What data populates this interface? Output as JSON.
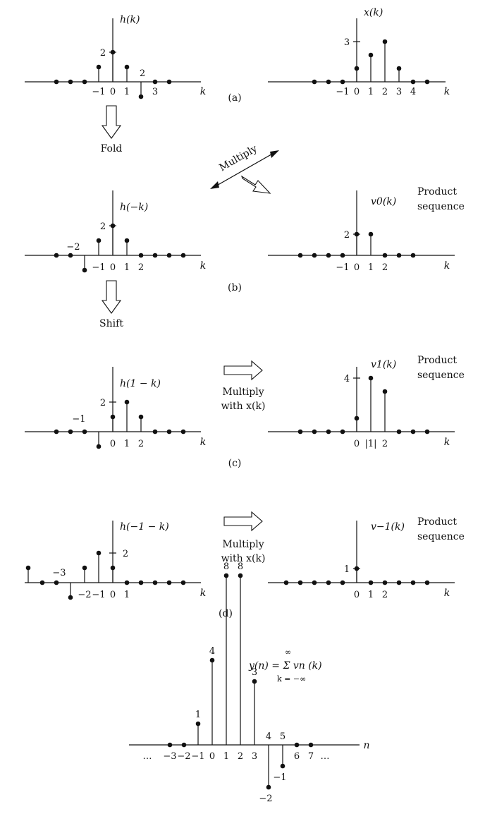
{
  "panels": [
    {
      "id": "a-h",
      "func_label": "h(k)",
      "var_label": "k",
      "caption": "(a)",
      "y_annotations": [
        {
          "text": "2",
          "value": 2
        }
      ],
      "tick_labels": [
        {
          "k": -1,
          "text": "−1"
        },
        {
          "k": 0,
          "text": "0"
        },
        {
          "k": 1,
          "text": "1"
        },
        {
          "k": 3,
          "text": "3"
        }
      ],
      "value_labels": [
        {
          "k": 2,
          "text": "2"
        }
      ],
      "samples": [
        [
          -4,
          0
        ],
        [
          -3,
          0
        ],
        [
          -2,
          0
        ],
        [
          -1,
          1
        ],
        [
          0,
          2
        ],
        [
          1,
          1
        ],
        [
          2,
          -1
        ],
        [
          3,
          0
        ],
        [
          4,
          0
        ]
      ]
    },
    {
      "id": "a-x",
      "func_label": "x(k)",
      "var_label": "k",
      "y_annotations": [
        {
          "text": "3",
          "value": 3
        }
      ],
      "tick_labels": [
        {
          "k": -1,
          "text": "−1"
        },
        {
          "k": 0,
          "text": "0"
        },
        {
          "k": 1,
          "text": "1"
        },
        {
          "k": 2,
          "text": "2"
        },
        {
          "k": 3,
          "text": "3"
        },
        {
          "k": 4,
          "text": "4"
        }
      ],
      "samples": [
        [
          -3,
          0
        ],
        [
          -2,
          0
        ],
        [
          -1,
          0
        ],
        [
          0,
          1
        ],
        [
          1,
          2
        ],
        [
          2,
          3
        ],
        [
          3,
          1
        ],
        [
          4,
          0
        ],
        [
          5,
          0
        ]
      ]
    },
    {
      "id": "b-h",
      "func_label": "h(−k)",
      "var_label": "k",
      "caption": "(b)",
      "y_annotations": [
        {
          "text": "2",
          "value": 2
        }
      ],
      "tick_labels": [
        {
          "k": -1,
          "text": "−1"
        },
        {
          "k": 0,
          "text": "0"
        },
        {
          "k": 1,
          "text": "1"
        },
        {
          "k": 2,
          "text": "2"
        }
      ],
      "value_labels": [
        {
          "k": -2,
          "text": "−2"
        }
      ],
      "samples": [
        [
          -4,
          0
        ],
        [
          -3,
          0
        ],
        [
          -2,
          -1
        ],
        [
          -1,
          1
        ],
        [
          0,
          2
        ],
        [
          1,
          1
        ],
        [
          2,
          0
        ],
        [
          3,
          0
        ],
        [
          4,
          0
        ],
        [
          5,
          0
        ]
      ]
    },
    {
      "id": "b-v",
      "func_label": "v0(k)",
      "var_label": "k",
      "side_text": [
        "Product",
        "sequence"
      ],
      "y_annotations": [
        {
          "text": "2",
          "value": 2
        }
      ],
      "tick_labels": [
        {
          "k": -1,
          "text": "−1"
        },
        {
          "k": 0,
          "text": "0"
        },
        {
          "k": 1,
          "text": "1"
        },
        {
          "k": 2,
          "text": "2"
        }
      ],
      "samples": [
        [
          -4,
          0
        ],
        [
          -3,
          0
        ],
        [
          -2,
          0
        ],
        [
          -1,
          0
        ],
        [
          0,
          2
        ],
        [
          1,
          2
        ],
        [
          2,
          0
        ],
        [
          3,
          0
        ],
        [
          4,
          0
        ]
      ]
    },
    {
      "id": "c-h",
      "func_label": "h(1 − k)",
      "var_label": "k",
      "caption": "(c)",
      "y_annotations": [
        {
          "text": "2",
          "value": 2
        }
      ],
      "tick_labels": [
        {
          "k": 0,
          "text": "0"
        },
        {
          "k": 1,
          "text": "1"
        },
        {
          "k": 2,
          "text": "2"
        }
      ],
      "value_labels": [
        {
          "k": -1,
          "text": "−1"
        }
      ],
      "samples": [
        [
          -4,
          0
        ],
        [
          -3,
          0
        ],
        [
          -2,
          0
        ],
        [
          -1,
          -1
        ],
        [
          0,
          1
        ],
        [
          1,
          2
        ],
        [
          2,
          1
        ],
        [
          3,
          0
        ],
        [
          4,
          0
        ],
        [
          5,
          0
        ]
      ]
    },
    {
      "id": "c-v",
      "func_label": "v1(k)",
      "var_label": "k",
      "side_text": [
        "Product",
        "sequence"
      ],
      "y_annotations": [
        {
          "text": "4",
          "value": 4
        }
      ],
      "tick_labels": [
        {
          "k": 0,
          "text": "0"
        },
        {
          "k": 1,
          "text": "|1|"
        },
        {
          "k": 2,
          "text": "2"
        }
      ],
      "samples": [
        [
          -4,
          0
        ],
        [
          -3,
          0
        ],
        [
          -2,
          0
        ],
        [
          -1,
          0
        ],
        [
          0,
          1
        ],
        [
          1,
          4
        ],
        [
          2,
          3
        ],
        [
          3,
          0
        ],
        [
          4,
          0
        ],
        [
          5,
          0
        ]
      ]
    },
    {
      "id": "d-h",
      "func_label": "h(−1 − k)",
      "var_label": "k",
      "caption": "(d)",
      "y_annotations": [
        {
          "text": "2",
          "value": 2
        }
      ],
      "tick_labels": [
        {
          "k": -2,
          "text": "−2"
        },
        {
          "k": -1,
          "text": "−1"
        },
        {
          "k": 0,
          "text": "0"
        },
        {
          "k": 1,
          "text": "1"
        }
      ],
      "value_labels": [
        {
          "k": -3,
          "text": "−3"
        }
      ],
      "samples": [
        [
          -6,
          1
        ],
        [
          -5,
          0
        ],
        [
          -4,
          0
        ],
        [
          -3,
          -1
        ],
        [
          -2,
          1
        ],
        [
          -1,
          2
        ],
        [
          0,
          1
        ],
        [
          1,
          0
        ],
        [
          2,
          0
        ],
        [
          3,
          0
        ],
        [
          4,
          0
        ],
        [
          5,
          0
        ]
      ]
    },
    {
      "id": "d-v",
      "func_label": "v−1(k)",
      "var_label": "k",
      "side_text": [
        "Product",
        "sequence"
      ],
      "y_annotations": [
        {
          "text": "1",
          "value": 1
        }
      ],
      "tick_labels": [
        {
          "k": 0,
          "text": "0"
        },
        {
          "k": 1,
          "text": "1"
        },
        {
          "k": 2,
          "text": "2"
        }
      ],
      "samples": [
        [
          -5,
          0
        ],
        [
          -4,
          0
        ],
        [
          -3,
          0
        ],
        [
          -2,
          0
        ],
        [
          -1,
          0
        ],
        [
          0,
          1
        ],
        [
          1,
          0
        ],
        [
          2,
          0
        ],
        [
          3,
          0
        ],
        [
          4,
          0
        ],
        [
          5,
          0
        ]
      ]
    },
    {
      "id": "e-y",
      "var_label": "n",
      "samples": [
        [
          -3,
          0
        ],
        [
          -2,
          0
        ],
        [
          -1,
          1
        ],
        [
          0,
          4
        ],
        [
          1,
          8
        ],
        [
          2,
          8
        ],
        [
          3,
          3
        ],
        [
          4,
          -2
        ],
        [
          5,
          -1
        ],
        [
          6,
          0
        ],
        [
          7,
          0
        ]
      ],
      "value_labels": [
        {
          "n": -1,
          "text": "1"
        },
        {
          "n": 0,
          "text": "4"
        },
        {
          "n": 1,
          "text": "8"
        },
        {
          "n": 2,
          "text": "8"
        },
        {
          "n": 3,
          "text": "3"
        },
        {
          "n": 4,
          "text": "4"
        },
        {
          "n": 5,
          "text": "5"
        }
      ],
      "tick_labels": [
        {
          "n": -3,
          "text": "−3"
        },
        {
          "n": -2,
          "text": "−2"
        },
        {
          "n": -1,
          "text": "−1"
        },
        {
          "n": 0,
          "text": "0"
        },
        {
          "n": 1,
          "text": "1"
        },
        {
          "n": 2,
          "text": "2"
        },
        {
          "n": 3,
          "text": "3"
        },
        {
          "n": 6,
          "text": "6"
        },
        {
          "n": 7,
          "text": "7"
        }
      ],
      "neg_labels": [
        {
          "n": 4,
          "text": "−2"
        },
        {
          "n": 5,
          "text": "−1"
        }
      ],
      "dots_left": "…",
      "dots_right": "…"
    }
  ],
  "annotations": {
    "fold": "Fold",
    "shift": "Shift",
    "multiply_diag": "Multiply",
    "multiply_c": [
      "Multiply",
      "with x(k)"
    ],
    "multiply_d": [
      "Multiply",
      "with x(k)"
    ],
    "formula": "y(n) = Σ vn (k)",
    "formula_upper": "∞",
    "formula_lower": "k = −∞"
  }
}
